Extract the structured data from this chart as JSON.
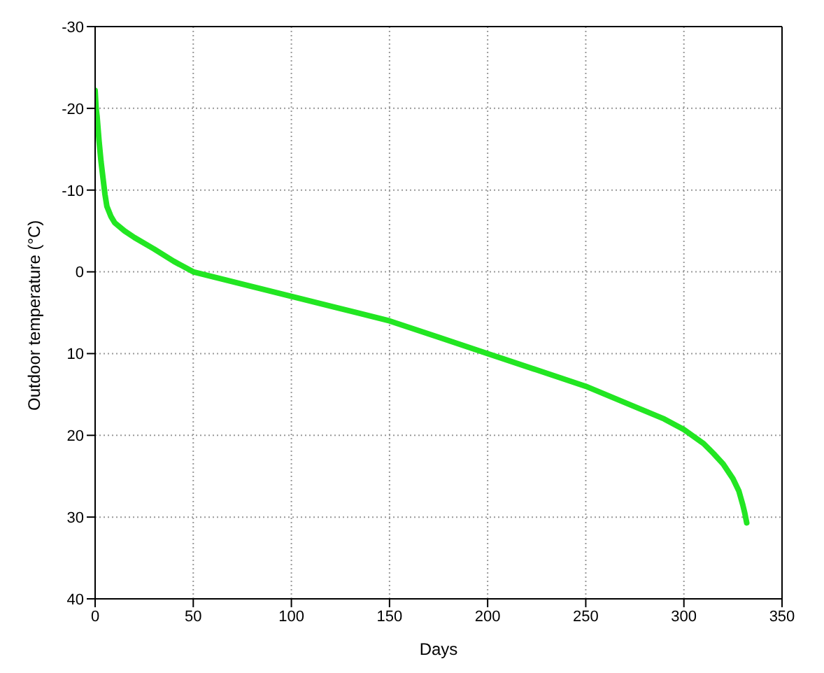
{
  "chart_data": {
    "type": "line",
    "xlabel": "Days",
    "ylabel": "Outdoor temperature  (°C)",
    "series": [
      {
        "color": "#22e622",
        "x": [
          0,
          0.5,
          1,
          2,
          3,
          4,
          5,
          6,
          8,
          10,
          15,
          20,
          30,
          40,
          50,
          75,
          100,
          125,
          150,
          175,
          200,
          225,
          250,
          275,
          290,
          300,
          310,
          315,
          320,
          325,
          328,
          330,
          331,
          332
        ],
        "values": [
          -22.2,
          -20,
          -19,
          -16,
          -13.5,
          -11.5,
          -9.5,
          -8,
          -6.8,
          -6,
          -5,
          -4.2,
          -2.8,
          -1.3,
          0,
          1.5,
          3,
          4.5,
          6,
          8,
          10,
          12,
          14,
          16.5,
          18,
          19.3,
          21,
          22.2,
          23.5,
          25.3,
          26.8,
          28.5,
          29.5,
          30.7
        ]
      }
    ],
    "xlim": [
      0,
      350
    ],
    "xticks": [
      0,
      50,
      100,
      150,
      200,
      250,
      300,
      350
    ],
    "ylim": [
      40,
      -30
    ],
    "yticks": [
      -30,
      -20,
      -10,
      0,
      10,
      20,
      30,
      40
    ],
    "grid": true,
    "marker": "none",
    "line_style": "solid"
  }
}
